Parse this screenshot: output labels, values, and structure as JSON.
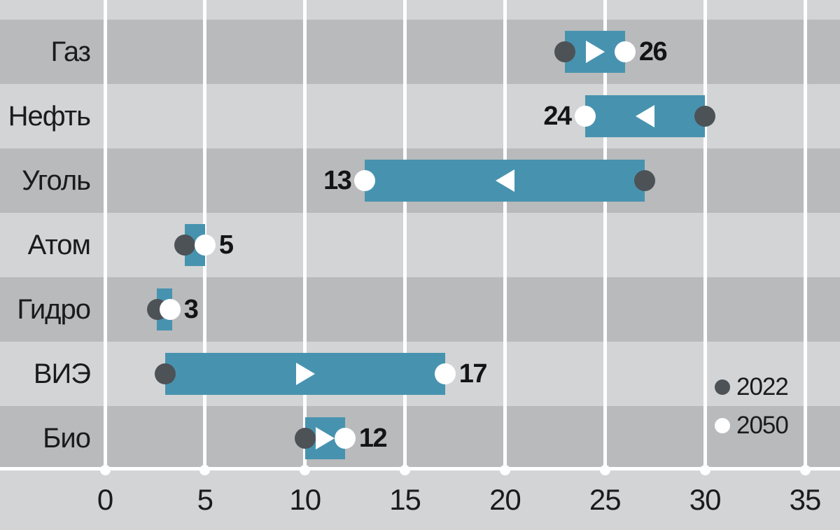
{
  "chart_data": {
    "type": "bar",
    "subtype": "dumbbell-range",
    "categories": [
      "Газ",
      "Нефть",
      "Уголь",
      "Атом",
      "Гидро",
      "ВИЭ",
      "Био"
    ],
    "series": [
      {
        "name": "2022",
        "marker": "dark-circle",
        "values": [
          23,
          30,
          27,
          4,
          3,
          3,
          10
        ]
      },
      {
        "name": "2050",
        "marker": "white-circle",
        "values": [
          26,
          24,
          13,
          5,
          3,
          17,
          12
        ]
      }
    ],
    "value_labels": [
      "26",
      "24",
      "13",
      "5",
      "3",
      "17",
      "12"
    ],
    "value_labels_refer_to": "2050",
    "x_ticks": [
      "0",
      "5",
      "10",
      "15",
      "20",
      "25",
      "30",
      "35"
    ],
    "xlim": [
      0,
      36.7
    ],
    "xlabel": "",
    "ylabel": "",
    "title": "",
    "grid": "vertical-white-gridlines",
    "legend_position": "bottom-right",
    "arrows": [
      "right",
      "left",
      "left",
      "none",
      "none",
      "right",
      "right"
    ]
  },
  "colors": {
    "bar": "#4793AF",
    "marker_2022": "#4D5257",
    "marker_2050": "#FFFFFF",
    "band_dark": "#B8BABC",
    "band_light": "#D2D4D6",
    "gridline": "#FFFFFF",
    "text": "#1A1B1D"
  }
}
